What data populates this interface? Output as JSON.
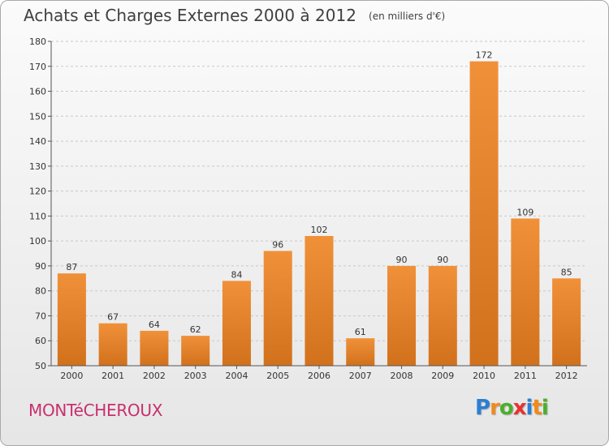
{
  "chart_data": {
    "type": "bar",
    "title": "Achats et Charges Externes 2000 à 2012",
    "subtitle": "(en milliers d'€)",
    "categories": [
      "2000",
      "2001",
      "2002",
      "2003",
      "2004",
      "2005",
      "2006",
      "2007",
      "2008",
      "2009",
      "2010",
      "2011",
      "2012"
    ],
    "values": [
      87,
      67,
      64,
      62,
      84,
      96,
      102,
      61,
      90,
      90,
      172,
      109,
      85
    ],
    "ylim": [
      50,
      180
    ],
    "yticks": [
      50,
      60,
      70,
      80,
      90,
      100,
      110,
      120,
      130,
      140,
      150,
      160,
      170,
      180
    ],
    "grid": true,
    "legend": "none",
    "bar_color": "#f0913a",
    "bar_color_dark": "#d2711c"
  },
  "footer": {
    "commune": "MONTéCHEROUX",
    "brand": "Proxiti",
    "brand_letters": [
      {
        "ch": "P",
        "color": "#2a7fd4"
      },
      {
        "ch": "r",
        "color": "#f08a1c"
      },
      {
        "ch": "o",
        "color": "#4caf2c"
      },
      {
        "ch": "x",
        "color": "#e8312f"
      },
      {
        "ch": "i",
        "color": "#2a7fd4"
      },
      {
        "ch": "t",
        "color": "#f08a1c"
      },
      {
        "ch": "i",
        "color": "#4caf2c"
      }
    ]
  }
}
